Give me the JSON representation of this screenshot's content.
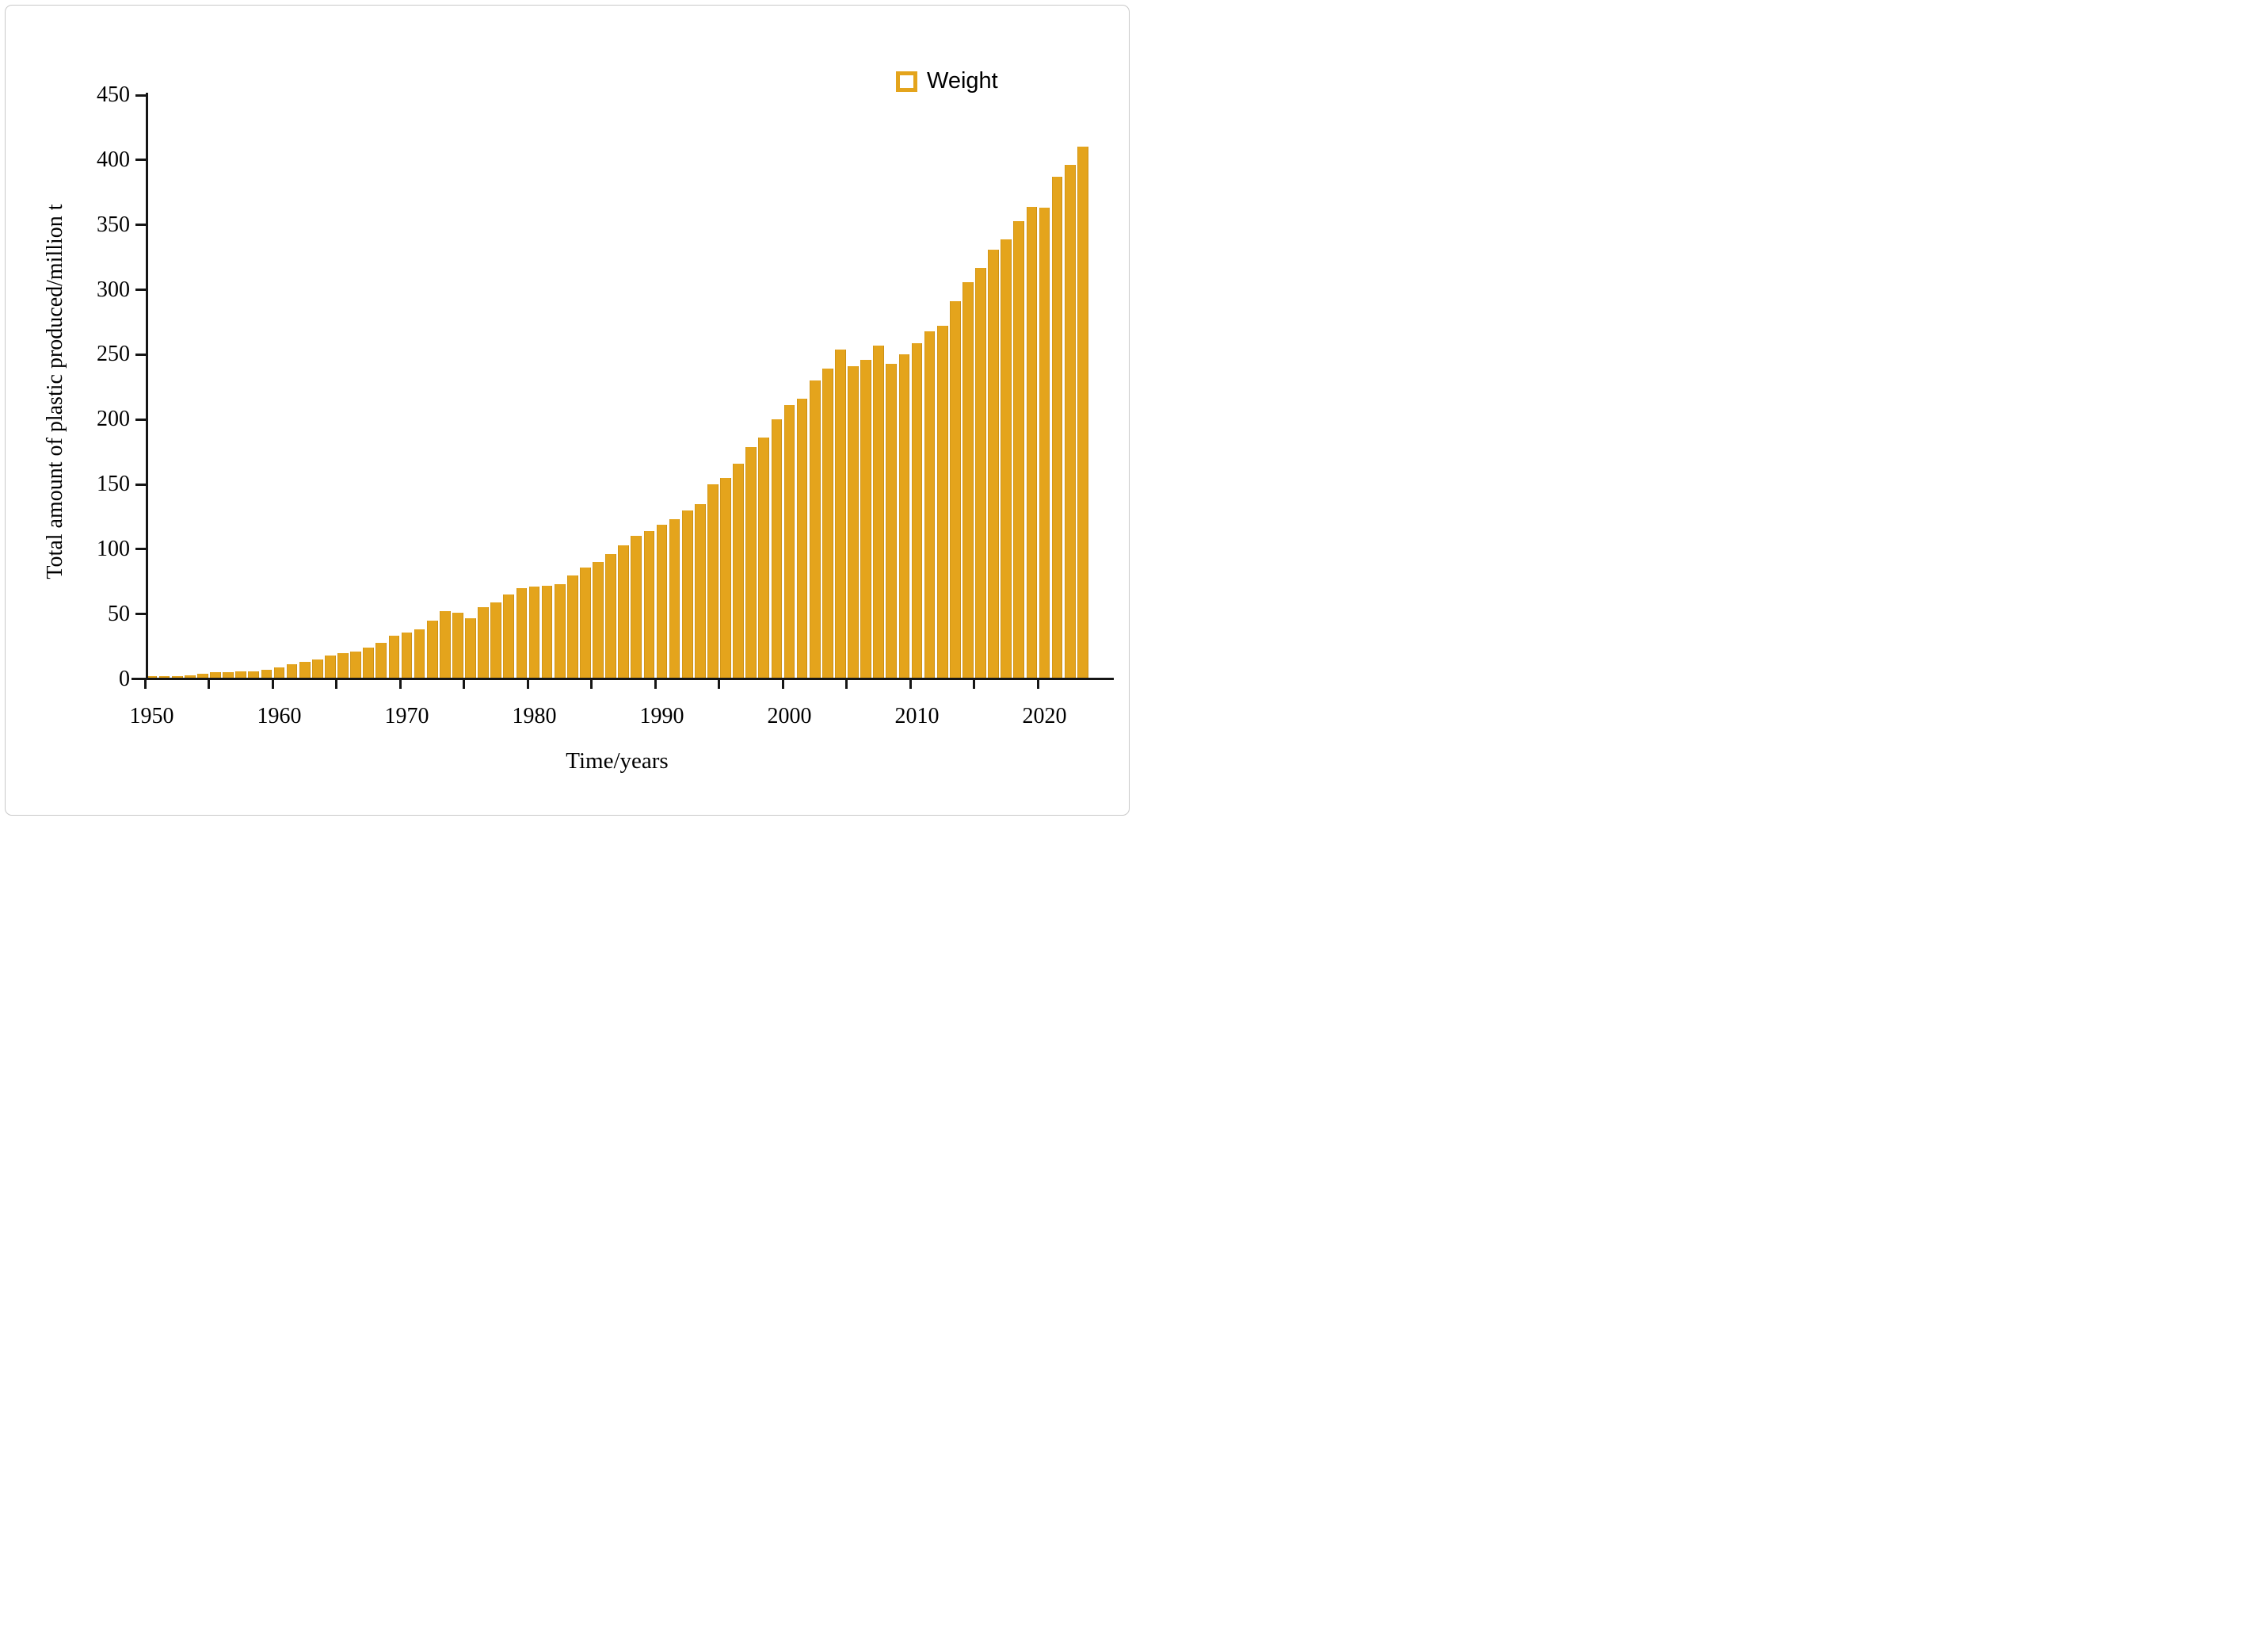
{
  "page": {
    "background": "#ffffff",
    "frame_border_color": "#c9c9c9"
  },
  "legend": {
    "label": "Weight",
    "marker_color": "#e4a41c",
    "position": "top-right"
  },
  "chart_data": {
    "type": "bar",
    "title": "",
    "xlabel": "Time/years",
    "ylabel": "Total amount of plastic produced/million t",
    "series_name": "Weight",
    "bar_color": "#e4a41c",
    "axis_color": "#161616",
    "grid": false,
    "ylim": [
      0,
      450
    ],
    "ytick_values": [
      0,
      50,
      100,
      150,
      200,
      250,
      300,
      350,
      400,
      450
    ],
    "xtick_years": [
      1950,
      1955,
      1960,
      1965,
      1970,
      1975,
      1980,
      1985,
      1990,
      1995,
      2000,
      2005,
      2010,
      2015,
      2020
    ],
    "xtick_label_years": [
      1950,
      1960,
      1970,
      1980,
      1990,
      2000,
      2010,
      2020
    ],
    "years": [
      1950,
      1951,
      1952,
      1953,
      1954,
      1955,
      1956,
      1957,
      1958,
      1959,
      1960,
      1961,
      1962,
      1963,
      1964,
      1965,
      1966,
      1967,
      1968,
      1969,
      1970,
      1971,
      1972,
      1973,
      1974,
      1975,
      1976,
      1977,
      1978,
      1979,
      1980,
      1981,
      1982,
      1983,
      1984,
      1985,
      1986,
      1987,
      1988,
      1989,
      1990,
      1991,
      1992,
      1993,
      1994,
      1995,
      1996,
      1997,
      1998,
      1999,
      2000,
      2001,
      2002,
      2003,
      2004,
      2005,
      2006,
      2007,
      2008,
      2009,
      2010,
      2011,
      2012,
      2013,
      2014,
      2015,
      2016,
      2017,
      2018,
      2019,
      2020,
      2021,
      2022,
      2023
    ],
    "values": [
      2,
      2,
      2,
      3,
      4,
      5,
      5,
      6,
      6,
      7,
      9,
      11,
      13,
      15,
      18,
      20,
      21,
      24,
      28,
      33,
      36,
      38,
      45,
      52,
      51,
      47,
      55,
      59,
      65,
      70,
      71,
      72,
      73,
      80,
      86,
      90,
      96,
      103,
      110,
      114,
      119,
      123,
      130,
      135,
      150,
      155,
      166,
      179,
      186,
      200,
      211,
      216,
      230,
      239,
      254,
      241,
      246,
      257,
      243,
      250,
      259,
      268,
      272,
      291,
      306,
      317,
      331,
      339,
      353,
      364,
      363,
      387,
      396,
      410
    ]
  }
}
